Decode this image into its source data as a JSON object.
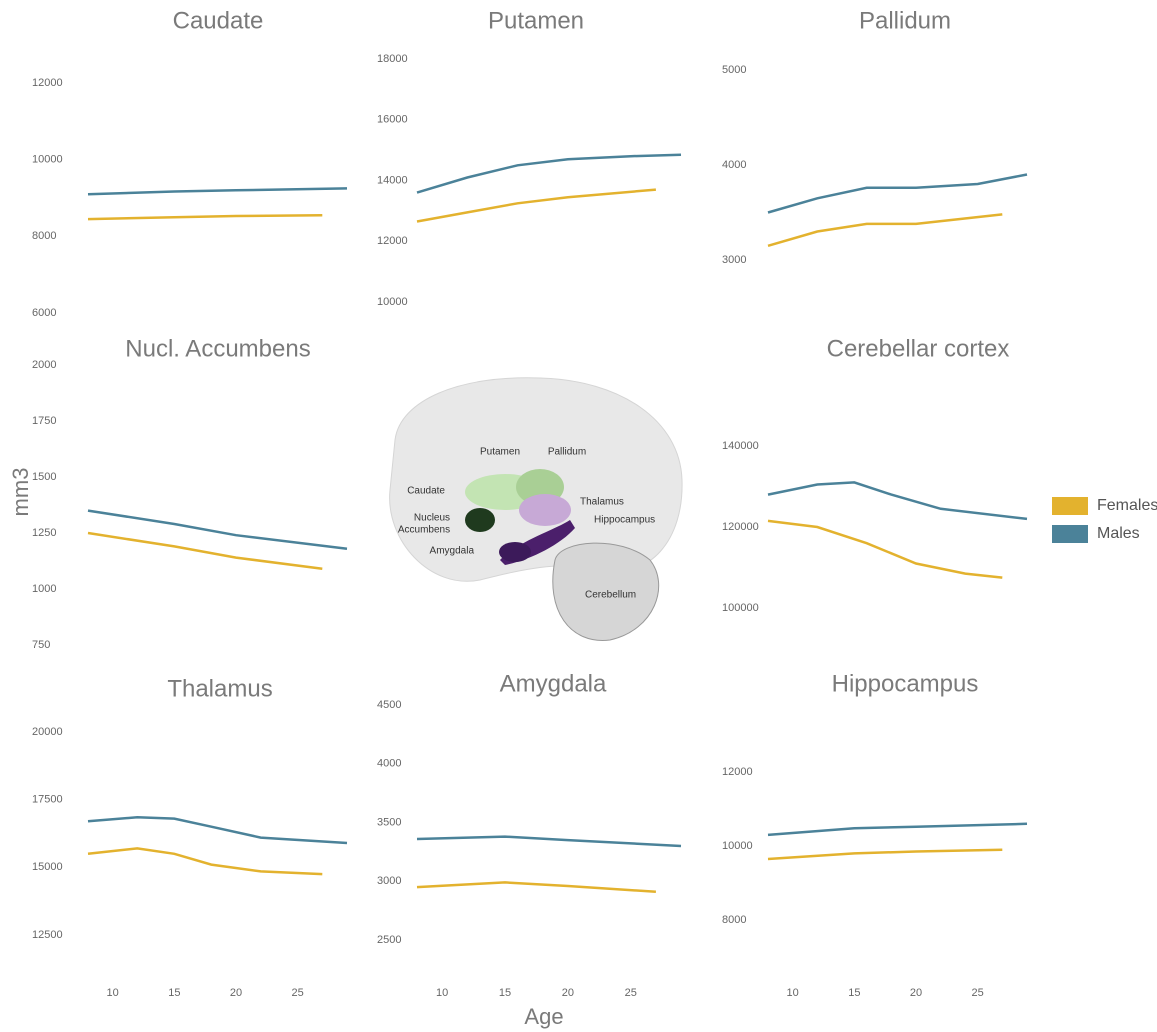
{
  "figure": {
    "y_label": "mm3",
    "x_label": "Age"
  },
  "illustration": {
    "labels": [
      "Putamen",
      "Pallidum",
      "Caudate",
      "Thalamus",
      "Nucleus",
      "Accumbens",
      "Hippocampus",
      "Amygdala",
      "Cerebellum"
    ]
  },
  "chart_data": [
    {
      "type": "line",
      "title": "Caudate",
      "xlim": [
        8,
        29
      ],
      "ylim": [
        6000,
        12000
      ],
      "yticks": [
        6000,
        8000,
        10000,
        12000
      ],
      "series": [
        {
          "name": "Females",
          "color": "#e3b22e",
          "x": [
            8,
            15,
            20,
            27
          ],
          "values": [
            8450,
            8500,
            8530,
            8550
          ]
        },
        {
          "name": "Males",
          "color": "#4b8299",
          "x": [
            8,
            15,
            20,
            29
          ],
          "values": [
            9100,
            9170,
            9200,
            9250
          ]
        }
      ]
    },
    {
      "type": "line",
      "title": "Putamen",
      "xlim": [
        8,
        29
      ],
      "ylim": [
        10000,
        18000
      ],
      "yticks": [
        10000,
        12000,
        14000,
        16000,
        18000
      ],
      "series": [
        {
          "name": "Females",
          "color": "#e3b22e",
          "x": [
            8,
            12,
            16,
            20,
            27
          ],
          "values": [
            12650,
            12950,
            13250,
            13450,
            13700
          ]
        },
        {
          "name": "Males",
          "color": "#4b8299",
          "x": [
            8,
            12,
            16,
            20,
            25,
            29
          ],
          "values": [
            13600,
            14100,
            14500,
            14700,
            14800,
            14850
          ]
        }
      ]
    },
    {
      "type": "line",
      "title": "Pallidum",
      "xlim": [
        8,
        29
      ],
      "ylim": [
        3000,
        5000
      ],
      "yticks": [
        3000,
        4000,
        5000
      ],
      "series": [
        {
          "name": "Females",
          "color": "#e3b22e",
          "x": [
            8,
            12,
            16,
            20,
            27
          ],
          "values": [
            3150,
            3300,
            3380,
            3380,
            3480
          ]
        },
        {
          "name": "Males",
          "color": "#4b8299",
          "x": [
            8,
            12,
            16,
            20,
            25,
            29
          ],
          "values": [
            3500,
            3650,
            3760,
            3760,
            3800,
            3900
          ]
        }
      ]
    },
    {
      "type": "line",
      "title": "Nucl. Accumbens",
      "xlim": [
        8,
        29
      ],
      "ylim": [
        750,
        2000
      ],
      "yticks": [
        750,
        1000,
        1250,
        1500,
        1750,
        2000
      ],
      "series": [
        {
          "name": "Females",
          "color": "#e3b22e",
          "x": [
            8,
            15,
            20,
            27
          ],
          "values": [
            1250,
            1190,
            1140,
            1090
          ]
        },
        {
          "name": "Males",
          "color": "#4b8299",
          "x": [
            8,
            15,
            20,
            29
          ],
          "values": [
            1350,
            1290,
            1240,
            1180
          ]
        }
      ]
    },
    {
      "type": "line",
      "title": "Cerebellar cortex",
      "xlim": [
        8,
        29
      ],
      "ylim": [
        100000,
        140000
      ],
      "yticks": [
        100000,
        120000,
        140000
      ],
      "series": [
        {
          "name": "Females",
          "color": "#e3b22e",
          "x": [
            8,
            12,
            16,
            20,
            24,
            27
          ],
          "values": [
            121500,
            120000,
            116000,
            111000,
            108500,
            107500
          ]
        },
        {
          "name": "Males",
          "color": "#4b8299",
          "x": [
            8,
            12,
            15,
            18,
            22,
            29
          ],
          "values": [
            128000,
            130500,
            131000,
            128000,
            124500,
            122000
          ]
        }
      ]
    },
    {
      "type": "line",
      "title": "Thalamus",
      "xlim": [
        8,
        29
      ],
      "ylim": [
        12500,
        20000
      ],
      "yticks": [
        12500,
        15000,
        17500,
        20000
      ],
      "xticks": [
        10,
        15,
        20,
        25
      ],
      "series": [
        {
          "name": "Females",
          "color": "#e3b22e",
          "x": [
            8,
            12,
            15,
            18,
            22,
            27
          ],
          "values": [
            15500,
            15700,
            15500,
            15100,
            14850,
            14750
          ]
        },
        {
          "name": "Males",
          "color": "#4b8299",
          "x": [
            8,
            12,
            15,
            18,
            22,
            29
          ],
          "values": [
            16700,
            16850,
            16800,
            16500,
            16100,
            15900
          ]
        }
      ]
    },
    {
      "type": "line",
      "title": "Amygdala",
      "xlim": [
        8,
        29
      ],
      "ylim": [
        2500,
        4500
      ],
      "yticks": [
        2500,
        3000,
        3500,
        4000,
        4500
      ],
      "xticks": [
        10,
        15,
        20,
        25
      ],
      "series": [
        {
          "name": "Females",
          "color": "#e3b22e",
          "x": [
            8,
            15,
            20,
            27
          ],
          "values": [
            2950,
            2990,
            2960,
            2910
          ]
        },
        {
          "name": "Males",
          "color": "#4b8299",
          "x": [
            8,
            15,
            20,
            29
          ],
          "values": [
            3360,
            3380,
            3350,
            3300
          ]
        }
      ]
    },
    {
      "type": "line",
      "title": "Hippocampus",
      "xlim": [
        8,
        29
      ],
      "ylim": [
        8000,
        12000
      ],
      "yticks": [
        8000,
        10000,
        12000
      ],
      "xticks": [
        10,
        15,
        20,
        25
      ],
      "series": [
        {
          "name": "Females",
          "color": "#e3b22e",
          "x": [
            8,
            15,
            20,
            27
          ],
          "values": [
            9650,
            9800,
            9850,
            9900
          ]
        },
        {
          "name": "Males",
          "color": "#4b8299",
          "x": [
            8,
            15,
            20,
            29
          ],
          "values": [
            10300,
            10480,
            10520,
            10600
          ]
        }
      ]
    }
  ]
}
